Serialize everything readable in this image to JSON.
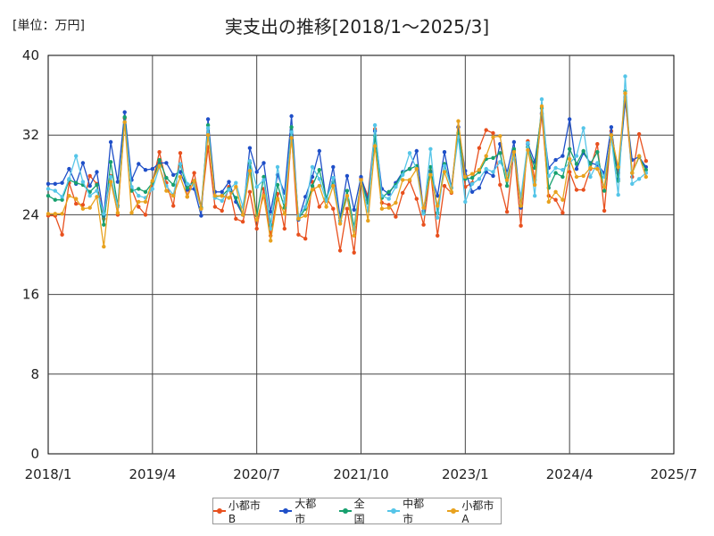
{
  "header": {
    "unit_label": "[単位：万円]",
    "title": "実支出の推移[2018/1～2025/3]"
  },
  "chart_data": {
    "type": "line",
    "title": "実支出の推移[2018/1～2025/3]",
    "unit": "[単位：万円]",
    "x_tick_labels": [
      "2018/1",
      "2019/4",
      "2020/7",
      "2021/10",
      "2023/1",
      "2024/4",
      "2025/7"
    ],
    "y_tick_labels": [
      "0",
      "8",
      "16",
      "24",
      "32",
      "40"
    ],
    "x_start": "2018/1",
    "ylim": [
      0,
      40
    ],
    "grid": true,
    "legend_position": "bottom",
    "series": [
      {
        "name": "小都市B",
        "color": "#e8501e",
        "values": [
          23.9,
          23.9,
          22.0,
          27.2,
          25.1,
          25.0,
          27.9,
          27.1,
          23.6,
          27.9,
          24.0,
          33.7,
          26.6,
          24.8,
          24.0,
          27.2,
          30.3,
          27.2,
          24.9,
          30.2,
          25.8,
          28.2,
          24.7,
          30.8,
          24.8,
          24.4,
          26.8,
          23.6,
          23.3,
          26.3,
          22.6,
          26.6,
          21.9,
          26.1,
          22.6,
          32.0,
          22.0,
          21.6,
          27.3,
          24.8,
          25.7,
          24.6,
          20.4,
          24.6,
          20.2,
          27.6,
          25.9,
          32.6,
          25.2,
          25.0,
          23.8,
          26.2,
          27.4,
          25.6,
          23.0,
          28.4,
          21.9,
          26.9,
          26.2,
          32.8,
          26.8,
          27.2,
          30.7,
          32.5,
          32.2,
          27.0,
          24.3,
          30.4,
          22.9,
          31.4,
          27.5,
          34.1,
          25.9,
          25.5,
          24.2,
          28.3,
          26.5,
          26.5,
          28.6,
          31.1,
          24.4,
          32.4,
          28.2,
          35.8,
          27.8,
          32.1,
          29.4
        ]
      },
      {
        "name": "大都市",
        "color": "#1f4fc8",
        "values": [
          27.1,
          27.1,
          27.2,
          28.6,
          27.1,
          29.2,
          26.9,
          28.3,
          23.9,
          31.3,
          27.3,
          34.3,
          27.5,
          29.1,
          28.5,
          28.6,
          29.2,
          29.2,
          28.0,
          28.3,
          26.5,
          26.6,
          23.9,
          33.6,
          26.3,
          26.3,
          27.3,
          25.3,
          24.0,
          30.7,
          28.3,
          29.2,
          24.3,
          28.0,
          26.2,
          33.9,
          23.5,
          25.8,
          27.8,
          30.4,
          25.4,
          28.8,
          23.7,
          27.9,
          24.5,
          27.8,
          25.5,
          32.4,
          26.6,
          26.1,
          27.2,
          28.3,
          28.6,
          30.4,
          24.4,
          28.3,
          25.9,
          30.3,
          26.7,
          32.8,
          28.4,
          26.3,
          26.7,
          28.3,
          27.9,
          31.1,
          28.2,
          31.3,
          24.7,
          31.1,
          29.3,
          34.2,
          28.7,
          29.5,
          29.9,
          33.6,
          28.6,
          30.2,
          29.2,
          29.0,
          28.2,
          32.8,
          27.6,
          35.4,
          29.5,
          29.8,
          28.8
        ]
      },
      {
        "name": "全国",
        "color": "#17a06e",
        "values": [
          25.9,
          25.5,
          25.5,
          27.5,
          27.2,
          27.0,
          26.3,
          27.0,
          23.0,
          29.3,
          24.9,
          33.8,
          26.4,
          26.6,
          26.3,
          27.2,
          29.5,
          27.7,
          27.0,
          29.0,
          26.7,
          27.4,
          24.7,
          33.0,
          25.8,
          25.9,
          26.6,
          25.7,
          24.0,
          29.2,
          23.9,
          27.8,
          23.0,
          27.0,
          24.7,
          32.8,
          23.6,
          24.6,
          26.9,
          28.5,
          25.7,
          27.3,
          23.4,
          26.4,
          22.8,
          27.4,
          25.2,
          31.9,
          25.7,
          26.3,
          27.0,
          28.2,
          28.6,
          28.9,
          24.2,
          28.8,
          24.2,
          29.1,
          26.7,
          32.2,
          27.6,
          27.7,
          28.3,
          29.6,
          29.7,
          30.2,
          26.9,
          30.6,
          24.9,
          30.8,
          28.7,
          34.7,
          26.7,
          28.2,
          27.8,
          30.6,
          29.1,
          30.4,
          29.1,
          30.3,
          26.4,
          31.9,
          27.4,
          36.4,
          28.2,
          29.8,
          28.5
        ]
      },
      {
        "name": "中都市",
        "color": "#55c5e8",
        "values": [
          26.6,
          26.4,
          25.8,
          27.6,
          29.9,
          27.3,
          25.9,
          26.4,
          24.1,
          27.8,
          24.8,
          33.3,
          26.8,
          25.9,
          25.7,
          26.6,
          28.8,
          26.9,
          26.0,
          29.1,
          27.1,
          27.0,
          24.6,
          32.7,
          25.7,
          25.4,
          26.5,
          27.2,
          24.8,
          29.4,
          26.8,
          27.5,
          22.6,
          28.8,
          25.3,
          32.3,
          23.9,
          24.8,
          28.8,
          27.6,
          25.4,
          27.7,
          23.3,
          25.7,
          22.5,
          27.4,
          24.4,
          33.0,
          25.9,
          25.6,
          26.8,
          28.0,
          30.2,
          28.6,
          24.1,
          30.6,
          23.7,
          28.9,
          26.7,
          31.8,
          25.3,
          27.1,
          27.6,
          28.6,
          28.3,
          29.3,
          28.1,
          29.7,
          25.8,
          31.2,
          25.9,
          35.6,
          27.9,
          28.7,
          28.5,
          29.2,
          29.9,
          32.7,
          27.8,
          29.2,
          27.8,
          31.7,
          26.0,
          37.9,
          27.1,
          27.6,
          28.2
        ]
      },
      {
        "name": "小都市A",
        "color": "#e8a21e",
        "values": [
          24.1,
          24.1,
          24.1,
          25.9,
          25.6,
          24.6,
          24.7,
          25.8,
          20.8,
          27.3,
          24.2,
          33.3,
          24.2,
          25.3,
          25.3,
          27.4,
          28.9,
          26.4,
          25.9,
          27.8,
          25.8,
          27.4,
          24.6,
          32.0,
          25.9,
          25.9,
          25.7,
          26.8,
          24.0,
          28.4,
          23.5,
          25.9,
          21.4,
          25.6,
          24.1,
          31.7,
          23.6,
          23.9,
          26.5,
          26.9,
          24.8,
          26.9,
          23.1,
          25.9,
          21.9,
          27.5,
          23.4,
          30.9,
          24.6,
          24.7,
          25.2,
          27.5,
          27.5,
          28.6,
          24.7,
          28.0,
          24.9,
          28.3,
          26.3,
          33.4,
          27.8,
          28.1,
          28.5,
          29.9,
          31.8,
          31.9,
          27.5,
          30.3,
          24.9,
          30.5,
          27.0,
          34.9,
          25.3,
          26.3,
          25.5,
          29.6,
          27.8,
          27.9,
          28.7,
          28.6,
          26.8,
          32.0,
          28.8,
          36.2,
          28.2,
          29.9,
          27.8
        ]
      }
    ]
  }
}
